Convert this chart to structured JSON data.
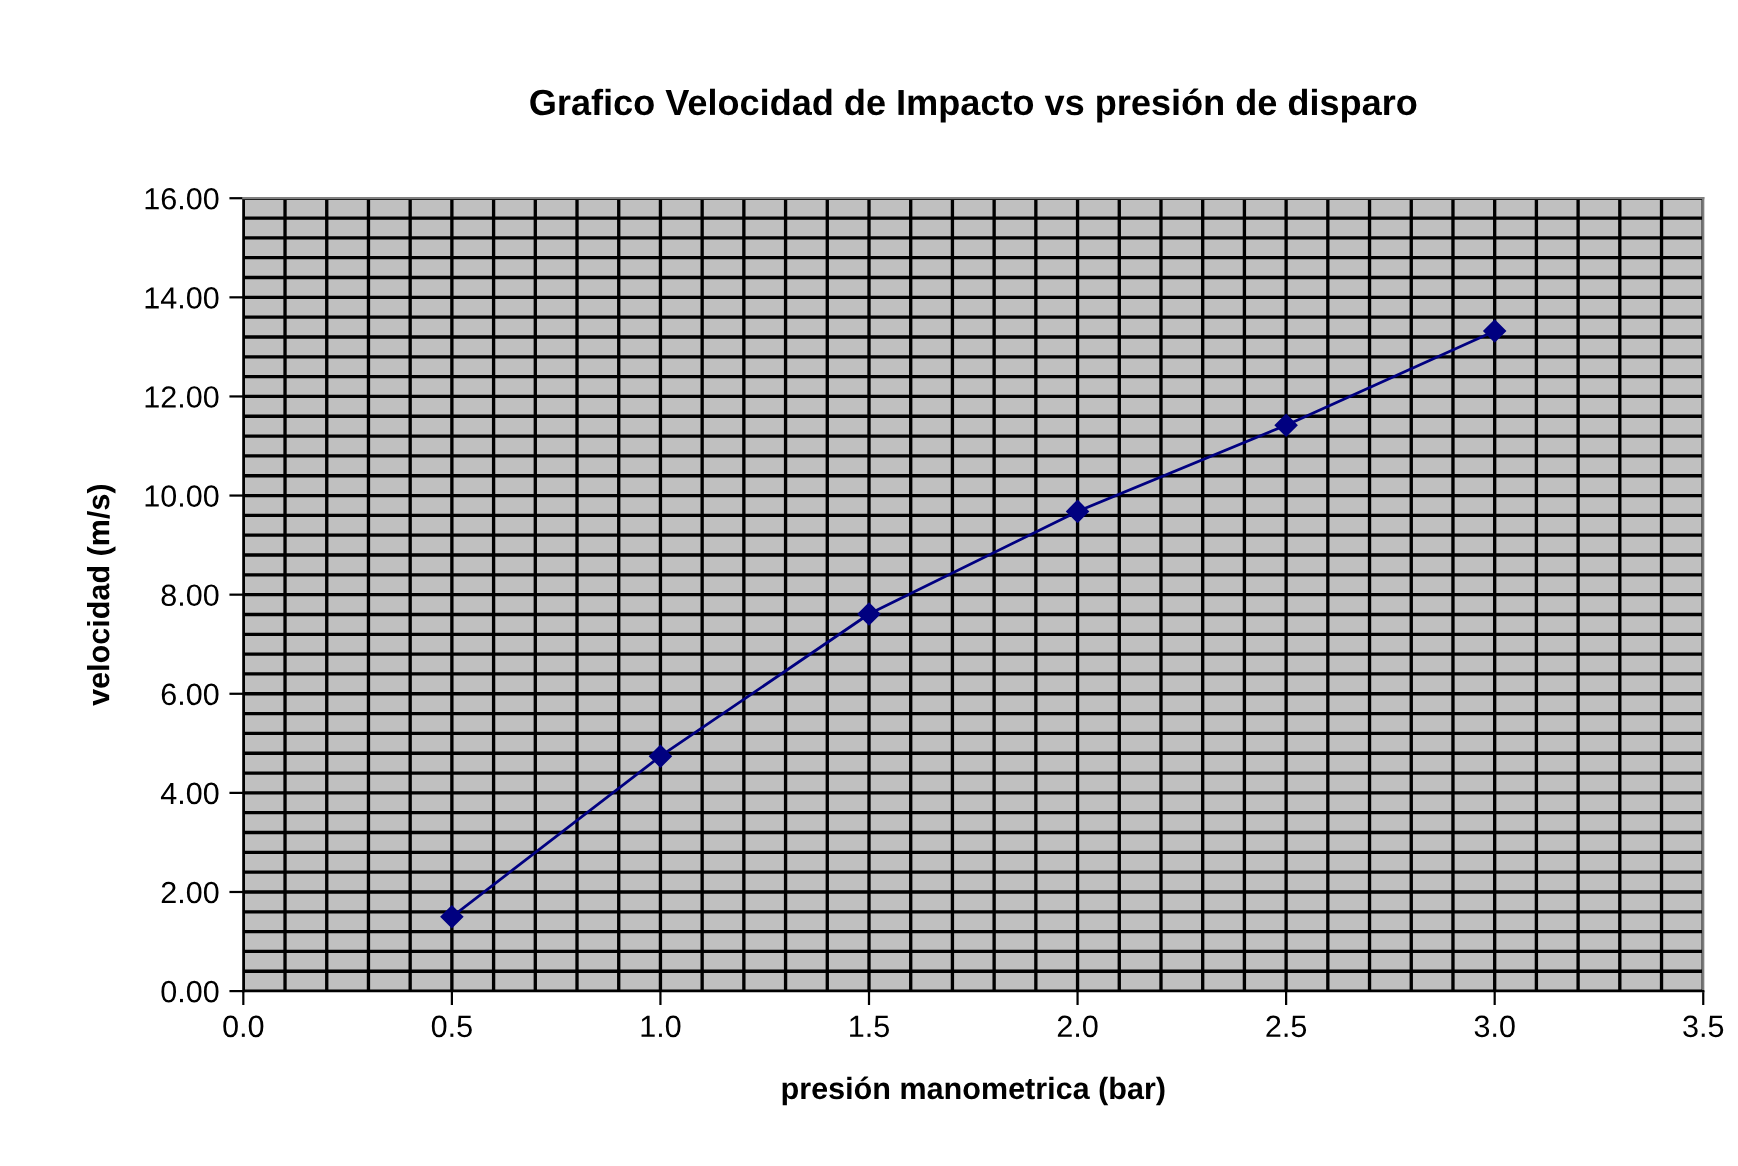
{
  "chart_data": {
    "type": "line",
    "title": "Grafico Velocidad de Impacto vs presión de disparo",
    "xlabel": "presión manometrica (bar)",
    "ylabel": "velocidad (m/s)",
    "x": [
      0.5,
      1.0,
      1.5,
      2.0,
      2.5,
      3.0
    ],
    "series": [
      {
        "color": "#000080",
        "values": [
          1.5,
          4.74,
          7.61,
          9.68,
          11.42,
          13.32
        ]
      }
    ],
    "xlim": [
      0,
      3.5
    ],
    "xticks": [
      {
        "value": 0,
        "label": "0.0"
      },
      {
        "value": 0.5,
        "label": "0.5"
      },
      {
        "value": 1,
        "label": "1.0"
      },
      {
        "value": 1.5,
        "label": "1.5"
      },
      {
        "value": 2,
        "label": "2.0"
      },
      {
        "value": 2.5,
        "label": "2.5"
      },
      {
        "value": 3,
        "label": "3.0"
      },
      {
        "value": 3.5,
        "label": "3.5"
      }
    ],
    "ylim": [
      0,
      16
    ],
    "yticks": [
      {
        "value": 0,
        "label": "0.00"
      },
      {
        "value": 2,
        "label": "2.00"
      },
      {
        "value": 4,
        "label": "4.00"
      },
      {
        "value": 6,
        "label": "6.00"
      },
      {
        "value": 8,
        "label": "8.00"
      },
      {
        "value": 10,
        "label": "10.00"
      },
      {
        "value": 12,
        "label": "12.00"
      },
      {
        "value": 14,
        "label": "14.00"
      },
      {
        "value": 16,
        "label": "16.00"
      }
    ],
    "grid": true,
    "marker": "diamond",
    "line_style": "solid"
  }
}
